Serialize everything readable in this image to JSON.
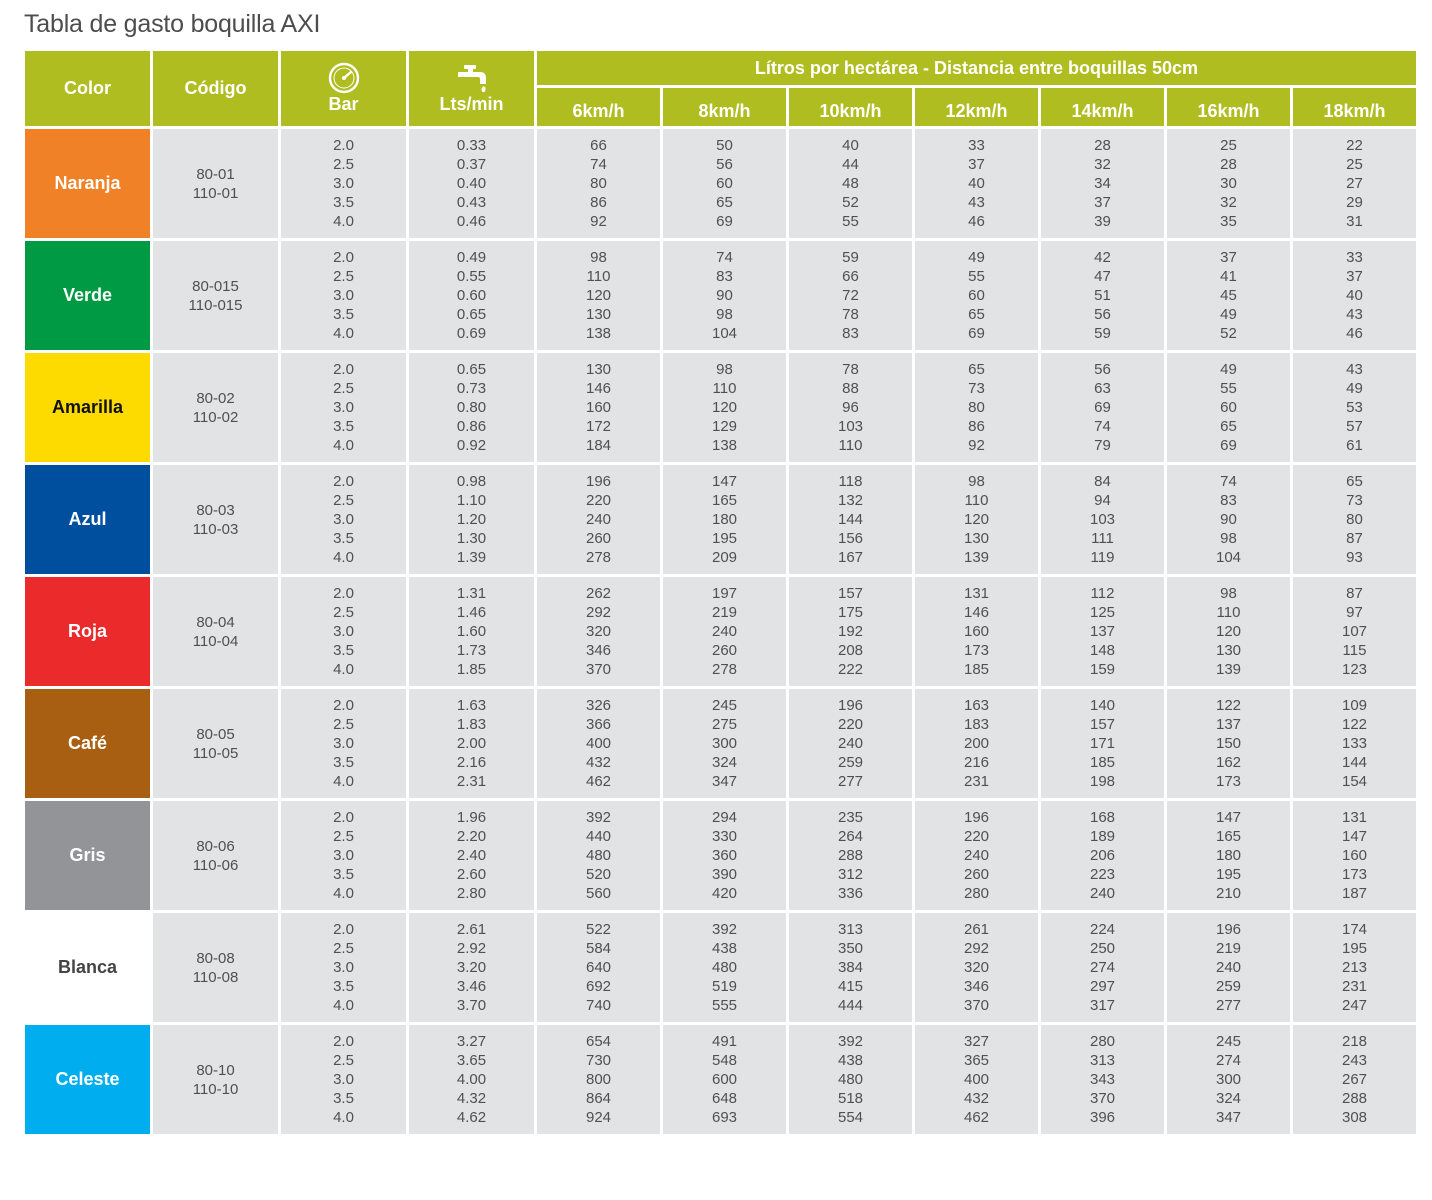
{
  "title": "Tabla de gasto boquilla AXI",
  "headers": {
    "color": "Color",
    "codigo": "Código",
    "bar": "Bar",
    "lts_min": "Lts/min",
    "group": "Lítros por hectárea - Distancia entre boquillas 50cm",
    "speeds": [
      "6km/h",
      "8km/h",
      "10km/h",
      "12km/h",
      "14km/h",
      "16km/h",
      "18km/h"
    ]
  },
  "icons": {
    "bar": "pressure-gauge-icon",
    "lts_min": "faucet-icon"
  },
  "colors": {
    "header_bg": "#afbd21",
    "cell_bg": "#e2e3e5"
  },
  "rows": [
    {
      "name": "Naranja",
      "bg": "#f08127",
      "fg": "#ffffff",
      "codes": [
        "80-01",
        "110-01"
      ],
      "bar": [
        "2.0",
        "2.5",
        "3.0",
        "3.5",
        "4.0"
      ],
      "lpm": [
        "0.33",
        "0.37",
        "0.40",
        "0.43",
        "0.46"
      ],
      "lha": [
        [
          "66",
          "74",
          "80",
          "86",
          "92"
        ],
        [
          "50",
          "56",
          "60",
          "65",
          "69"
        ],
        [
          "40",
          "44",
          "48",
          "52",
          "55"
        ],
        [
          "33",
          "37",
          "40",
          "43",
          "46"
        ],
        [
          "28",
          "32",
          "34",
          "37",
          "39"
        ],
        [
          "25",
          "28",
          "30",
          "32",
          "35"
        ],
        [
          "22",
          "25",
          "27",
          "29",
          "31"
        ]
      ]
    },
    {
      "name": "Verde",
      "bg": "#009a44",
      "fg": "#ffffff",
      "codes": [
        "80-015",
        "110-015"
      ],
      "bar": [
        "2.0",
        "2.5",
        "3.0",
        "3.5",
        "4.0"
      ],
      "lpm": [
        "0.49",
        "0.55",
        "0.60",
        "0.65",
        "0.69"
      ],
      "lha": [
        [
          "98",
          "110",
          "120",
          "130",
          "138"
        ],
        [
          "74",
          "83",
          "90",
          "98",
          "104"
        ],
        [
          "59",
          "66",
          "72",
          "78",
          "83"
        ],
        [
          "49",
          "55",
          "60",
          "65",
          "69"
        ],
        [
          "42",
          "47",
          "51",
          "56",
          "59"
        ],
        [
          "37",
          "41",
          "45",
          "49",
          "52"
        ],
        [
          "33",
          "37",
          "40",
          "43",
          "46"
        ]
      ]
    },
    {
      "name": "Amarilla",
      "bg": "#fddb00",
      "fg": "#111111",
      "codes": [
        "80-02",
        "110-02"
      ],
      "bar": [
        "2.0",
        "2.5",
        "3.0",
        "3.5",
        "4.0"
      ],
      "lpm": [
        "0.65",
        "0.73",
        "0.80",
        "0.86",
        "0.92"
      ],
      "lha": [
        [
          "130",
          "146",
          "160",
          "172",
          "184"
        ],
        [
          "98",
          "110",
          "120",
          "129",
          "138"
        ],
        [
          "78",
          "88",
          "96",
          "103",
          "110"
        ],
        [
          "65",
          "73",
          "80",
          "86",
          "92"
        ],
        [
          "56",
          "63",
          "69",
          "74",
          "79"
        ],
        [
          "49",
          "55",
          "60",
          "65",
          "69"
        ],
        [
          "43",
          "49",
          "53",
          "57",
          "61"
        ]
      ]
    },
    {
      "name": "Azul",
      "bg": "#004f9f",
      "fg": "#ffffff",
      "codes": [
        "80-03",
        "110-03"
      ],
      "bar": [
        "2.0",
        "2.5",
        "3.0",
        "3.5",
        "4.0"
      ],
      "lpm": [
        "0.98",
        "1.10",
        "1.20",
        "1.30",
        "1.39"
      ],
      "lha": [
        [
          "196",
          "220",
          "240",
          "260",
          "278"
        ],
        [
          "147",
          "165",
          "180",
          "195",
          "209"
        ],
        [
          "118",
          "132",
          "144",
          "156",
          "167"
        ],
        [
          "98",
          "110",
          "120",
          "130",
          "139"
        ],
        [
          "84",
          "94",
          "103",
          "111",
          "119"
        ],
        [
          "74",
          "83",
          "90",
          "98",
          "104"
        ],
        [
          "65",
          "73",
          "80",
          "87",
          "93"
        ]
      ]
    },
    {
      "name": "Roja",
      "bg": "#ea2a2b",
      "fg": "#ffffff",
      "codes": [
        "80-04",
        "110-04"
      ],
      "bar": [
        "2.0",
        "2.5",
        "3.0",
        "3.5",
        "4.0"
      ],
      "lpm": [
        "1.31",
        "1.46",
        "1.60",
        "1.73",
        "1.85"
      ],
      "lha": [
        [
          "262",
          "292",
          "320",
          "346",
          "370"
        ],
        [
          "197",
          "219",
          "240",
          "260",
          "278"
        ],
        [
          "157",
          "175",
          "192",
          "208",
          "222"
        ],
        [
          "131",
          "146",
          "160",
          "173",
          "185"
        ],
        [
          "112",
          "125",
          "137",
          "148",
          "159"
        ],
        [
          "98",
          "110",
          "120",
          "130",
          "139"
        ],
        [
          "87",
          "97",
          "107",
          "115",
          "123"
        ]
      ]
    },
    {
      "name": "Café",
      "bg": "#a85f12",
      "fg": "#ffffff",
      "codes": [
        "80-05",
        "110-05"
      ],
      "bar": [
        "2.0",
        "2.5",
        "3.0",
        "3.5",
        "4.0"
      ],
      "lpm": [
        "1.63",
        "1.83",
        "2.00",
        "2.16",
        "2.31"
      ],
      "lha": [
        [
          "326",
          "366",
          "400",
          "432",
          "462"
        ],
        [
          "245",
          "275",
          "300",
          "324",
          "347"
        ],
        [
          "196",
          "220",
          "240",
          "259",
          "277"
        ],
        [
          "163",
          "183",
          "200",
          "216",
          "231"
        ],
        [
          "140",
          "157",
          "171",
          "185",
          "198"
        ],
        [
          "122",
          "137",
          "150",
          "162",
          "173"
        ],
        [
          "109",
          "122",
          "133",
          "144",
          "154"
        ]
      ]
    },
    {
      "name": "Gris",
      "bg": "#939498",
      "fg": "#ffffff",
      "codes": [
        "80-06",
        "110-06"
      ],
      "bar": [
        "2.0",
        "2.5",
        "3.0",
        "3.5",
        "4.0"
      ],
      "lpm": [
        "1.96",
        "2.20",
        "2.40",
        "2.60",
        "2.80"
      ],
      "lha": [
        [
          "392",
          "440",
          "480",
          "520",
          "560"
        ],
        [
          "294",
          "330",
          "360",
          "390",
          "420"
        ],
        [
          "235",
          "264",
          "288",
          "312",
          "336"
        ],
        [
          "196",
          "220",
          "240",
          "260",
          "280"
        ],
        [
          "168",
          "189",
          "206",
          "223",
          "240"
        ],
        [
          "147",
          "165",
          "180",
          "195",
          "210"
        ],
        [
          "131",
          "147",
          "160",
          "173",
          "187"
        ]
      ]
    },
    {
      "name": "Blanca",
      "bg": "#ffffff",
      "fg": "#444444",
      "codes": [
        "80-08",
        "110-08"
      ],
      "bar": [
        "2.0",
        "2.5",
        "3.0",
        "3.5",
        "4.0"
      ],
      "lpm": [
        "2.61",
        "2.92",
        "3.20",
        "3.46",
        "3.70"
      ],
      "lha": [
        [
          "522",
          "584",
          "640",
          "692",
          "740"
        ],
        [
          "392",
          "438",
          "480",
          "519",
          "555"
        ],
        [
          "313",
          "350",
          "384",
          "415",
          "444"
        ],
        [
          "261",
          "292",
          "320",
          "346",
          "370"
        ],
        [
          "224",
          "250",
          "274",
          "297",
          "317"
        ],
        [
          "196",
          "219",
          "240",
          "259",
          "277"
        ],
        [
          "174",
          "195",
          "213",
          "231",
          "247"
        ]
      ]
    },
    {
      "name": "Celeste",
      "bg": "#00aeef",
      "fg": "#ffffff",
      "codes": [
        "80-10",
        "110-10"
      ],
      "bar": [
        "2.0",
        "2.5",
        "3.0",
        "3.5",
        "4.0"
      ],
      "lpm": [
        "3.27",
        "3.65",
        "4.00",
        "4.32",
        "4.62"
      ],
      "lha": [
        [
          "654",
          "730",
          "800",
          "864",
          "924"
        ],
        [
          "491",
          "548",
          "600",
          "648",
          "693"
        ],
        [
          "392",
          "438",
          "480",
          "518",
          "554"
        ],
        [
          "327",
          "365",
          "400",
          "432",
          "462"
        ],
        [
          "280",
          "313",
          "343",
          "370",
          "396"
        ],
        [
          "245",
          "274",
          "300",
          "324",
          "347"
        ],
        [
          "218",
          "243",
          "267",
          "288",
          "308"
        ]
      ]
    }
  ]
}
